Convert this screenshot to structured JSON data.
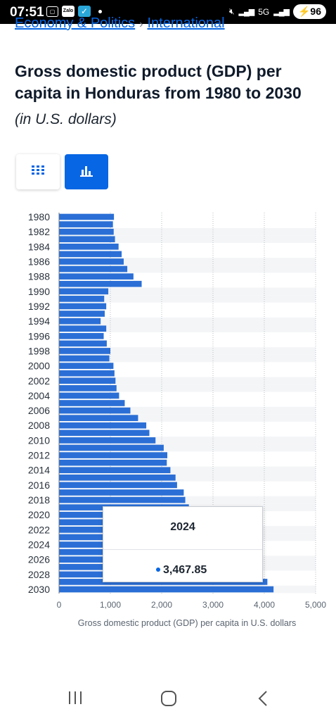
{
  "status_bar": {
    "time": "07:51",
    "app_icon_label": "Zalo",
    "network": "5G",
    "battery": "96"
  },
  "breadcrumb": {
    "items": [
      "Economy & Politics",
      "International"
    ],
    "separator": "›"
  },
  "page": {
    "title": "Gross domestic product (GDP) per capita in Honduras from 1980 to 2030",
    "subtitle": "(in U.S. dollars)"
  },
  "view_toggle": {
    "table_icon": "grid-icon",
    "chart_icon": "bar-chart-icon",
    "active": "chart",
    "active_color": "#0666e4"
  },
  "chart_data": {
    "type": "bar",
    "orientation": "horizontal",
    "categories": [
      "1980",
      "1981",
      "1982",
      "1983",
      "1984",
      "1985",
      "1986",
      "1987",
      "1988",
      "1989",
      "1990",
      "1991",
      "1992",
      "1993",
      "1994",
      "1995",
      "1996",
      "1997",
      "1998",
      "1999",
      "2000",
      "2001",
      "2002",
      "2003",
      "2004",
      "2005",
      "2006",
      "2007",
      "2008",
      "2009",
      "2010",
      "2011",
      "2012",
      "2013",
      "2014",
      "2015",
      "2016",
      "2017",
      "2018",
      "2019",
      "2020",
      "2021",
      "2022",
      "2023",
      "2024",
      "2025",
      "2026",
      "2027",
      "2028",
      "2029",
      "2030"
    ],
    "values": [
      1070,
      1050,
      1065,
      1090,
      1160,
      1220,
      1260,
      1330,
      1450,
      1610,
      960,
      880,
      920,
      890,
      810,
      920,
      870,
      930,
      1000,
      980,
      1060,
      1080,
      1100,
      1120,
      1170,
      1280,
      1390,
      1540,
      1700,
      1760,
      1880,
      2040,
      2110,
      2100,
      2170,
      2270,
      2300,
      2430,
      2460,
      2530,
      2400,
      2620,
      2750,
      3100,
      3467.85,
      3570,
      3690,
      3800,
      3970,
      4060,
      4180
    ],
    "tick_labels_y": [
      "1980",
      "1982",
      "1984",
      "1986",
      "1988",
      "1990",
      "1992",
      "1994",
      "1996",
      "1998",
      "2000",
      "2002",
      "2004",
      "2006",
      "2008",
      "2010",
      "2012",
      "2014",
      "2016",
      "2018",
      "2020",
      "2022",
      "2024",
      "2026",
      "2028",
      "2030"
    ],
    "tick_labels_x": [
      "0",
      "1,000",
      "2,000",
      "3,000",
      "4,000",
      "5,000"
    ],
    "xlim": [
      0,
      5000
    ],
    "xlabel": "Gross domestic product (GDP) per capita in U.S. dollars",
    "bar_color": "#2b6fd6",
    "grid": true
  },
  "tooltip": {
    "year": "2024",
    "value": "3,467.85"
  },
  "nav_bar": {
    "recents_icon": "recents-icon",
    "home_icon": "home-icon",
    "back_icon": "back-icon"
  }
}
